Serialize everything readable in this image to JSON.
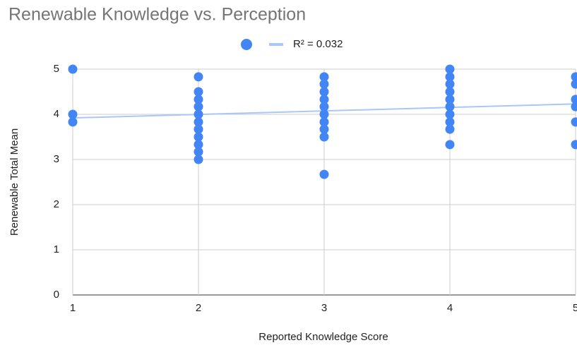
{
  "chart_data": {
    "type": "scatter",
    "title": "Renewable Knowledge vs. Perception",
    "x_label": "Reported Knowledge Score",
    "y_label": "Renewable Total Mean",
    "xlim": [
      1,
      5
    ],
    "xticks": [
      1,
      2,
      3,
      4,
      5
    ],
    "ylim": [
      0,
      5
    ],
    "yticks": [
      0,
      1,
      2,
      3,
      4,
      5
    ],
    "grid": true,
    "series": [
      {
        "color": "#4285f4",
        "x": [
          1,
          1,
          1,
          2,
          2,
          2,
          2,
          2,
          2,
          2,
          2,
          2,
          2,
          2,
          3,
          3,
          3,
          3,
          3,
          3,
          3,
          3,
          3,
          3,
          4,
          4,
          4,
          4,
          4,
          4,
          4,
          4,
          4,
          4,
          5,
          5,
          5,
          5,
          5,
          5
        ],
        "values": [
          5,
          4,
          3.83,
          4.83,
          4.5,
          4.33,
          4.17,
          4,
          3.83,
          3.67,
          3.5,
          3.33,
          3.17,
          3,
          4.83,
          4.67,
          4.5,
          4.33,
          4.17,
          4,
          3.83,
          3.67,
          3.5,
          2.67,
          5,
          4.83,
          4.67,
          4.5,
          4.33,
          4.17,
          4,
          3.83,
          3.67,
          3.33,
          4.83,
          4.67,
          4.33,
          4.17,
          3.83,
          3.33
        ]
      }
    ],
    "trendline": {
      "label": "R² = 0.032",
      "color": "#a8c7fa",
      "x": [
        1,
        5
      ],
      "values": [
        3.92,
        4.23
      ]
    }
  }
}
